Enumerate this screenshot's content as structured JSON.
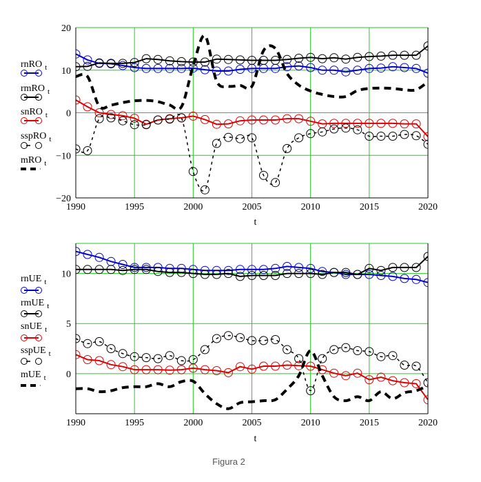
{
  "caption": "Figura 2",
  "colors": {
    "grid": "#22cc22",
    "blue": "#0000cc",
    "black": "#000000",
    "red": "#dd0000",
    "caption": "#555555"
  },
  "chart_data": [
    {
      "type": "line",
      "title": "",
      "xlabel": "t",
      "ylabel": "",
      "xlim": [
        1990,
        2020
      ],
      "ylim": [
        -20,
        20
      ],
      "grid": true,
      "legend_position": "left",
      "x_ticks": [
        "1990",
        "1995",
        "2000",
        "2005",
        "2010",
        "2015",
        "2020"
      ],
      "y_ticks": [
        "20",
        "10",
        "0",
        "−10",
        "−20"
      ],
      "y_tick_values": [
        20,
        10,
        0,
        -10,
        -20
      ],
      "x_tick_values": [
        1990,
        1995,
        2000,
        2005,
        2010,
        2015,
        2020
      ],
      "x": [
        1990,
        1991,
        1992,
        1993,
        1994,
        1995,
        1996,
        1997,
        1998,
        1999,
        2000,
        2001,
        2002,
        2003,
        2004,
        2005,
        2006,
        2007,
        2008,
        2009,
        2010,
        2011,
        2012,
        2013,
        2014,
        2015,
        2016,
        2017,
        2018,
        2019,
        2020
      ],
      "series": [
        {
          "name": "rnRO",
          "sub": "t",
          "color": "blue",
          "style": "solid-circles",
          "values": [
            13.8,
            12.4,
            11.6,
            11.5,
            11.1,
            10.6,
            10.4,
            10.4,
            10.4,
            10.4,
            10.5,
            10.1,
            9.8,
            9.8,
            10.2,
            10.4,
            10.4,
            10.4,
            10.8,
            11.0,
            10.6,
            10.0,
            10.0,
            9.6,
            10.0,
            10.4,
            10.5,
            10.8,
            10.6,
            10.4,
            9.3
          ]
        },
        {
          "name": "rmRO",
          "sub": "t",
          "color": "black",
          "style": "solid-circles",
          "values": [
            10.8,
            10.9,
            11.7,
            11.6,
            11.6,
            11.8,
            12.7,
            12.5,
            12.2,
            12.0,
            11.9,
            11.9,
            12.6,
            12.5,
            12.4,
            12.3,
            12.3,
            12.3,
            12.5,
            12.8,
            13.0,
            12.7,
            12.9,
            12.6,
            13.0,
            13.2,
            13.3,
            13.5,
            13.5,
            13.5,
            15.7
          ]
        },
        {
          "name": "snRO",
          "sub": "t",
          "color": "red",
          "style": "solid-circles",
          "values": [
            3.0,
            1.4,
            0.0,
            -0.4,
            -0.7,
            -1.3,
            -2.7,
            -1.7,
            -1.4,
            -1.2,
            -0.8,
            -1.6,
            -2.7,
            -2.6,
            -1.9,
            -1.7,
            -1.7,
            -1.7,
            -1.4,
            -1.4,
            -2.0,
            -2.6,
            -2.5,
            -2.5,
            -2.5,
            -2.5,
            -2.5,
            -2.5,
            -2.6,
            -2.6,
            -5.6
          ]
        },
        {
          "name": "sspRO",
          "sub": "t",
          "color": "black",
          "style": "dotted-circles",
          "values": [
            -8.5,
            -8.9,
            -1.4,
            -1.2,
            -1.9,
            -2.8,
            -2.8,
            -1.7,
            -1.5,
            -1.2,
            -13.8,
            -18.1,
            -7.2,
            -5.8,
            -6.1,
            -5.9,
            -14.7,
            -16.4,
            -8.4,
            -5.9,
            -4.9,
            -4.5,
            -3.8,
            -3.6,
            -4.0,
            -5.5,
            -5.5,
            -5.5,
            -5.1,
            -5.4,
            -7.4
          ]
        },
        {
          "name": "mRO",
          "sub": "t",
          "color": "black",
          "style": "thick-dash",
          "values": [
            8.5,
            8.5,
            1.5,
            1.8,
            2.4,
            2.8,
            2.9,
            2.6,
            1.8,
            1.4,
            11.0,
            18.1,
            7.4,
            6.2,
            6.4,
            6.2,
            14.6,
            15.1,
            9.2,
            6.5,
            5.1,
            4.3,
            3.8,
            3.8,
            5.2,
            5.7,
            5.8,
            5.7,
            5.4,
            5.4,
            7.3
          ]
        }
      ]
    },
    {
      "type": "line",
      "title": "",
      "xlabel": "t",
      "ylabel": "",
      "xlim": [
        1990,
        2020
      ],
      "ylim": [
        -4,
        13
      ],
      "grid": true,
      "legend_position": "left",
      "x_ticks": [
        "1990",
        "1995",
        "2000",
        "2005",
        "2010",
        "2015",
        "2020"
      ],
      "y_ticks": [
        "10",
        "5",
        "0"
      ],
      "y_tick_values": [
        10,
        5,
        0
      ],
      "x_tick_values": [
        1990,
        1995,
        2000,
        2005,
        2010,
        2015,
        2020
      ],
      "x": [
        1990,
        1991,
        1992,
        1993,
        1994,
        1995,
        1996,
        1997,
        1998,
        1999,
        2000,
        2001,
        2002,
        2003,
        2004,
        2005,
        2006,
        2007,
        2008,
        2009,
        2010,
        2011,
        2012,
        2013,
        2014,
        2015,
        2016,
        2017,
        2018,
        2019,
        2020
      ],
      "series": [
        {
          "name": "rnUE",
          "sub": "t",
          "color": "blue",
          "style": "solid-circles",
          "values": [
            12.2,
            11.9,
            11.6,
            11.2,
            10.9,
            10.6,
            10.6,
            10.6,
            10.5,
            10.5,
            10.4,
            10.3,
            10.3,
            10.3,
            10.4,
            10.4,
            10.4,
            10.5,
            10.7,
            10.6,
            10.5,
            10.2,
            10.1,
            9.9,
            9.9,
            9.9,
            9.8,
            9.7,
            9.5,
            9.4,
            9.1
          ]
        },
        {
          "name": "rmUE",
          "sub": "t",
          "color": "black",
          "style": "solid-circles",
          "values": [
            10.4,
            10.4,
            10.4,
            10.4,
            10.3,
            10.4,
            10.4,
            10.2,
            10.1,
            10.1,
            10.0,
            9.9,
            9.9,
            10.0,
            9.7,
            9.8,
            9.8,
            9.8,
            10.0,
            10.0,
            10.0,
            9.9,
            10.1,
            10.1,
            9.9,
            10.5,
            10.3,
            10.6,
            10.6,
            10.6,
            11.7
          ]
        },
        {
          "name": "snUE",
          "sub": "t",
          "color": "red",
          "style": "solid-circles",
          "values": [
            1.9,
            1.4,
            1.3,
            0.9,
            0.7,
            0.4,
            0.4,
            0.4,
            0.35,
            0.4,
            0.55,
            0.4,
            0.3,
            0.1,
            0.7,
            0.45,
            0.75,
            0.75,
            0.85,
            0.8,
            0.75,
            0.4,
            0.05,
            -0.2,
            0.05,
            -0.6,
            -0.35,
            -0.7,
            -0.9,
            -1.0,
            -2.6
          ]
        },
        {
          "name": "sspUE",
          "sub": "t",
          "color": "black",
          "style": "dotted-circles",
          "values": [
            3.5,
            3.0,
            3.2,
            2.5,
            2.0,
            1.7,
            1.6,
            1.5,
            1.8,
            1.3,
            1.4,
            2.4,
            3.5,
            3.8,
            3.6,
            3.3,
            3.3,
            3.4,
            2.4,
            1.5,
            -1.7,
            1.5,
            2.4,
            2.6,
            2.3,
            2.2,
            1.7,
            1.8,
            0.85,
            0.75,
            -0.9
          ]
        },
        {
          "name": "mUE",
          "sub": "t",
          "color": "black",
          "style": "thick-dash",
          "values": [
            -1.5,
            -1.5,
            -1.8,
            -1.7,
            -1.4,
            -1.3,
            -1.3,
            -1.0,
            -1.3,
            -0.8,
            -0.75,
            -2.0,
            -3.0,
            -3.5,
            -2.9,
            -2.8,
            -2.7,
            -2.6,
            -1.55,
            -0.2,
            2.3,
            -0.2,
            -2.3,
            -2.7,
            -2.3,
            -2.7,
            -1.8,
            -2.5,
            -1.9,
            -1.7,
            -1.2
          ]
        }
      ]
    }
  ]
}
